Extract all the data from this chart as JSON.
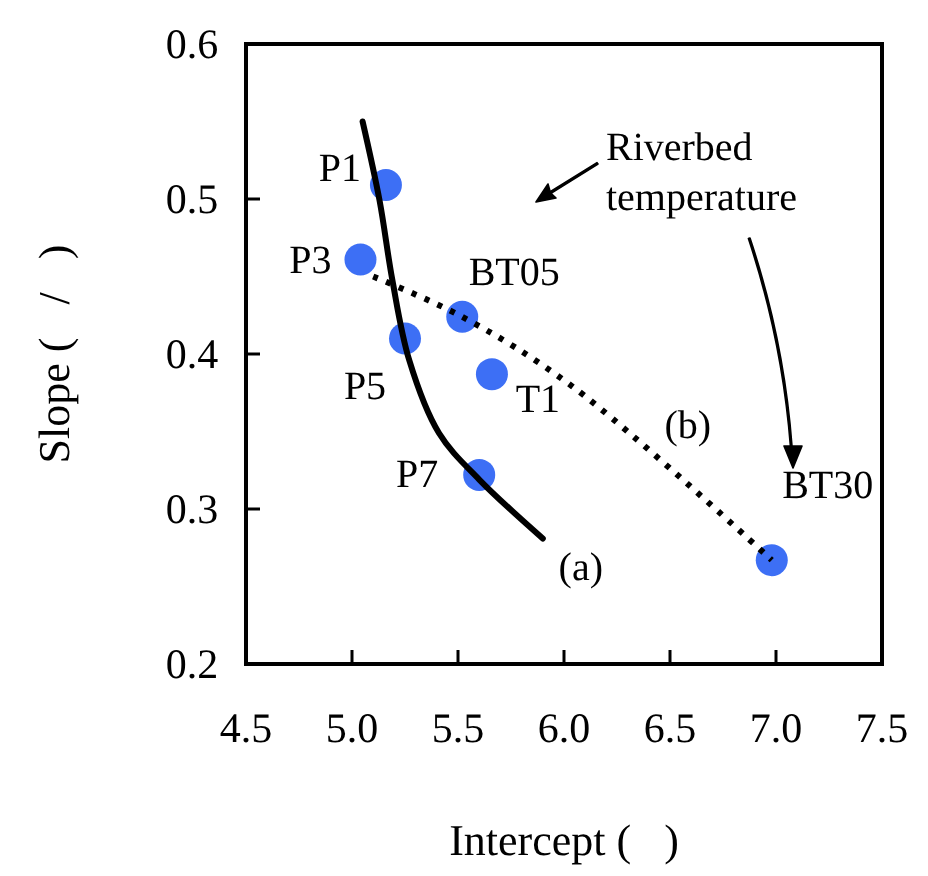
{
  "chart_data": {
    "type": "scatter",
    "xlabel": "Intercept (   )",
    "ylabel": "Slope (   /   )",
    "xlim": [
      4.5,
      7.5
    ],
    "xticks": [
      {
        "value": 4.5,
        "label": "4.5"
      },
      {
        "value": 5,
        "label": "5.0"
      },
      {
        "value": 5.5,
        "label": "5.5"
      },
      {
        "value": 6,
        "label": "6.0"
      },
      {
        "value": 6.5,
        "label": "6.5"
      },
      {
        "value": 7,
        "label": "7.0"
      },
      {
        "value": 7.5,
        "label": "7.5"
      }
    ],
    "ylim": [
      0.2,
      0.6
    ],
    "yticks": [
      0.2,
      0.3,
      0.4,
      0.5,
      0.6
    ],
    "annotations": [
      "Riverbed temperature"
    ],
    "series": [
      {
        "name": "P1",
        "color": "#3d6ff5",
        "x": [
          5.16
        ],
        "values": [
          0.509
        ]
      },
      {
        "name": "P3",
        "color": "#3d6ff5",
        "x": [
          5.04
        ],
        "values": [
          0.461
        ]
      },
      {
        "name": "BT05",
        "color": "#3d6ff5",
        "x": [
          5.52
        ],
        "values": [
          0.424
        ]
      },
      {
        "name": "P5",
        "color": "#3d6ff5",
        "x": [
          5.25
        ],
        "values": [
          0.41
        ]
      },
      {
        "name": "T1",
        "color": "#3d6ff5",
        "x": [
          5.66
        ],
        "values": [
          0.387
        ]
      },
      {
        "name": "P7",
        "color": "#3d6ff5",
        "x": [
          5.6
        ],
        "values": [
          0.322
        ]
      },
      {
        "name": "BT30",
        "color": "#3d6ff5",
        "x": [
          6.98
        ],
        "values": [
          0.267
        ]
      },
      {
        "name": "(a)",
        "type": "line",
        "color": "#000000",
        "line_style": "solid",
        "marker": "none",
        "x": [
          5.05,
          5.13,
          5.19,
          5.27,
          5.41,
          5.6,
          5.9
        ],
        "values": [
          0.55,
          0.499,
          0.448,
          0.396,
          0.349,
          0.319,
          0.281
        ]
      },
      {
        "name": "(b)",
        "type": "line",
        "color": "#000000",
        "line_style": "dotted",
        "marker": "none",
        "x": [
          5.1,
          5.52,
          6.04,
          6.98
        ],
        "values": [
          0.45,
          0.424,
          0.379,
          0.267
        ]
      }
    ]
  }
}
